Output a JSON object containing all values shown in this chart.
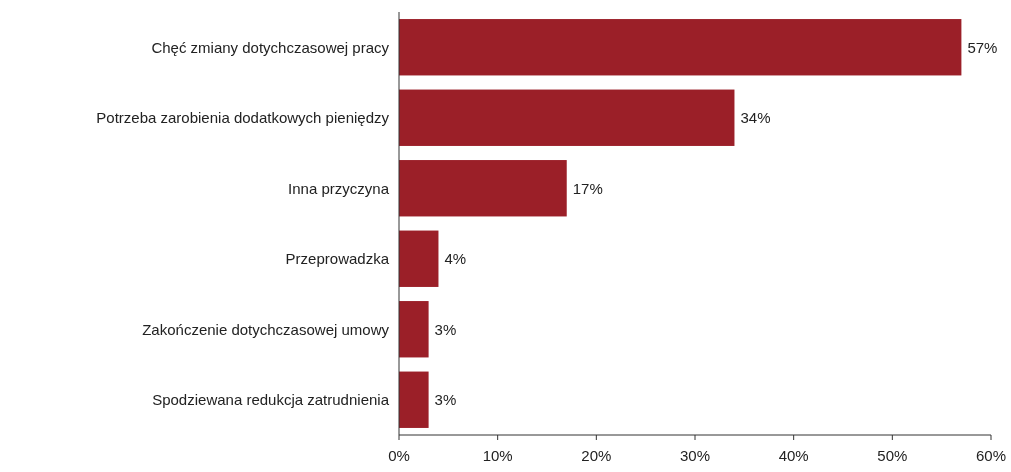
{
  "chart_data": {
    "type": "bar",
    "orientation": "horizontal",
    "categories": [
      "Chęć zmiany dotychczasowej pracy",
      "Potrzeba zarobienia dodatkowych pieniędzy",
      "Inna przyczyna",
      "Przeprowadzka",
      "Zakończenie dotychczasowej umowy",
      "Spodziewana redukcja zatrudnienia"
    ],
    "values": [
      57,
      34,
      17,
      4,
      3,
      3
    ],
    "value_labels": [
      "57%",
      "34%",
      "17%",
      "4%",
      "3%",
      "3%"
    ],
    "color": "#9b1f28",
    "xlim": [
      0,
      60
    ],
    "xticks": [
      {
        "value": 0,
        "label": "0%"
      },
      {
        "value": 10,
        "label": "10%"
      },
      {
        "value": 20,
        "label": "20%"
      },
      {
        "value": 30,
        "label": "30%"
      },
      {
        "value": 40,
        "label": "40%"
      },
      {
        "value": 50,
        "label": "50%"
      },
      {
        "value": 60,
        "label": "60%"
      }
    ],
    "grid": false
  }
}
